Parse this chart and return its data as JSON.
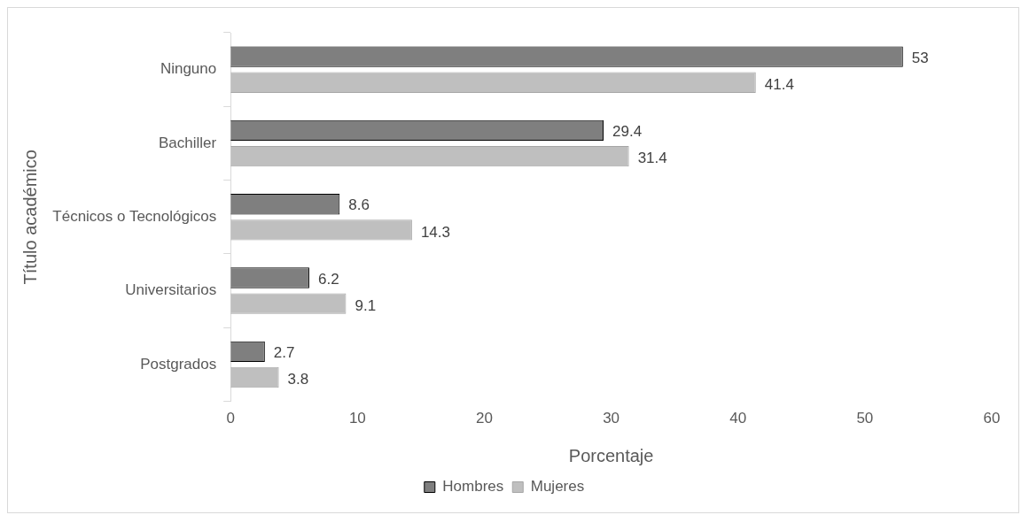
{
  "chart_data": {
    "type": "bar",
    "orientation": "horizontal",
    "xlabel": "Porcentaje",
    "ylabel": "Título académico",
    "categories": [
      "Ninguno",
      "Bachiller",
      "Técnicos o Tecnológicos",
      "Universitarios",
      "Postgrados"
    ],
    "series": [
      {
        "name": "Hombres",
        "color": "#7f7f7f",
        "values": [
          53,
          29.4,
          8.6,
          6.2,
          2.7
        ]
      },
      {
        "name": "Mujeres",
        "color": "#bfbfbf",
        "values": [
          41.4,
          31.4,
          14.3,
          9.1,
          3.8
        ]
      }
    ],
    "xlim": [
      0,
      60
    ],
    "xticks": [
      0,
      10,
      20,
      30,
      40,
      50,
      60
    ],
    "grid": false,
    "legend": "bottom",
    "data_labels": true
  }
}
